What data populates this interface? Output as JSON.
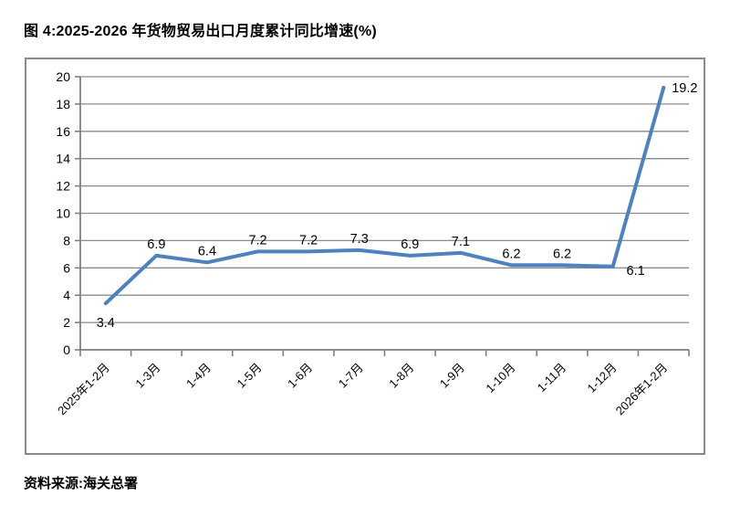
{
  "figure": {
    "title": "图 4:2025-2026 年货物贸易出口月度累计同比增速(%)",
    "source": "资料来源:海关总署"
  },
  "chart_data": {
    "type": "line",
    "title": "图 4:2025-2026 年货物贸易出口月度累计同比增速(%)",
    "categories": [
      "2025年1-2月",
      "1-3月",
      "1-4月",
      "1-5月",
      "1-6月",
      "1-7月",
      "1-8月",
      "1-9月",
      "1-10月",
      "1-11月",
      "1-12月",
      "2026年1-2月"
    ],
    "values": [
      3.4,
      6.9,
      6.4,
      7.2,
      7.2,
      7.3,
      6.9,
      7.1,
      6.2,
      6.2,
      6.1,
      19.2
    ],
    "xlabel": "",
    "ylabel": "",
    "ylim": [
      0,
      20
    ],
    "ytick_step": 2,
    "grid": true,
    "legend": false,
    "data_labels": true,
    "label_placement": [
      "below",
      "above",
      "above",
      "above",
      "above",
      "above",
      "above",
      "above",
      "above",
      "above",
      "below-right",
      "right"
    ],
    "x_label_rotation_deg": -45,
    "colors": {
      "line": "#4F81BD",
      "grid": "#8C8C8C",
      "axis": "#7F7F7F",
      "frame_border": "#8A8A8A",
      "text": "#000000"
    }
  }
}
